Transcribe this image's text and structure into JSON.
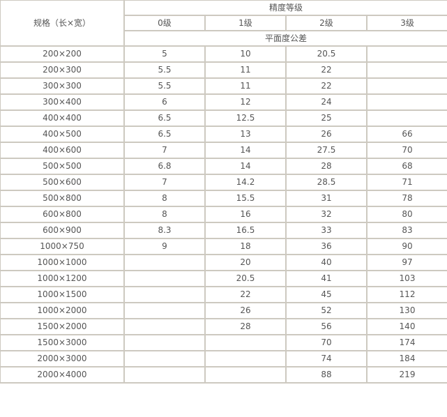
{
  "header": {
    "spec_label": "规格（长×宽）",
    "precision_label": "精度等级",
    "grades": [
      "0级",
      "1级",
      "2级",
      "3级"
    ],
    "tolerance_label": "平面度公差"
  },
  "rows": [
    [
      "200×200",
      "5",
      "10",
      "20.5",
      ""
    ],
    [
      "200×300",
      "5.5",
      "11",
      "22",
      ""
    ],
    [
      "300×300",
      "5.5",
      "11",
      "22",
      ""
    ],
    [
      "300×400",
      "6",
      "12",
      "24",
      ""
    ],
    [
      "400×400",
      "6.5",
      "12.5",
      "25",
      ""
    ],
    [
      "400×500",
      "6.5",
      "13",
      "26",
      "66"
    ],
    [
      "400×600",
      "7",
      "14",
      "27.5",
      "70"
    ],
    [
      "500×500",
      "6.8",
      "14",
      "28",
      "68"
    ],
    [
      "500×600",
      "7",
      "14.2",
      "28.5",
      "71"
    ],
    [
      "500×800",
      "8",
      "15.5",
      "31",
      "78"
    ],
    [
      "600×800",
      "8",
      "16",
      "32",
      "80"
    ],
    [
      "600×900",
      "8.3",
      "16.5",
      "33",
      "83"
    ],
    [
      "1000×750",
      "9",
      "18",
      "36",
      "90"
    ],
    [
      "1000×1000",
      "",
      "20",
      "40",
      "97"
    ],
    [
      "1000×1200",
      "",
      "20.5",
      "41",
      "103"
    ],
    [
      "1000×1500",
      "",
      "22",
      "45",
      "112"
    ],
    [
      "1000×2000",
      "",
      "26",
      "52",
      "130"
    ],
    [
      "1500×2000",
      "",
      "28",
      "56",
      "140"
    ],
    [
      "1500×3000",
      "",
      "",
      "70",
      "174"
    ],
    [
      "2000×3000",
      "",
      "",
      "74",
      "184"
    ],
    [
      "2000×4000",
      "",
      "",
      "88",
      "219"
    ]
  ]
}
